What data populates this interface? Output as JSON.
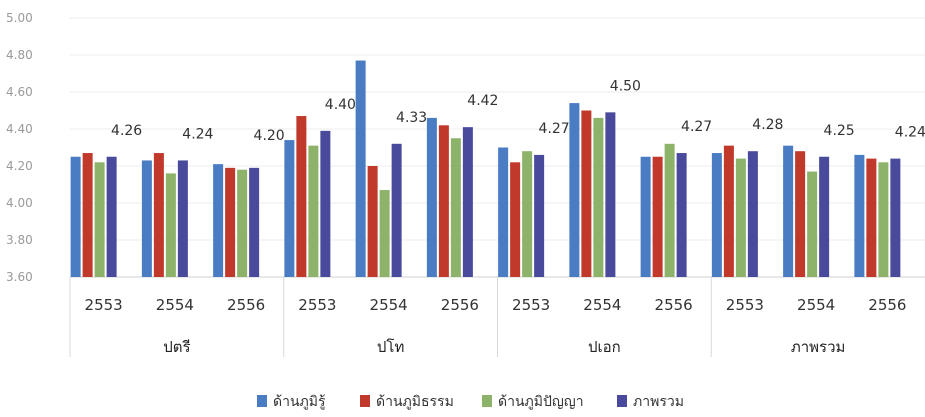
{
  "chart_data": {
    "type": "bar",
    "y_ticks": [
      "5.00",
      "4.80",
      "4.60",
      "4.40",
      "4.20",
      "4.00",
      "3.80",
      "3.60"
    ],
    "ylim": [
      3.6,
      5.0
    ],
    "groups": [
      {
        "label": "ปตรี",
        "categories": [
          "2553",
          "2554",
          "2556"
        ]
      },
      {
        "label": "ปโท",
        "categories": [
          "2553",
          "2554",
          "2556"
        ]
      },
      {
        "label": "ปเอก",
        "categories": [
          "2553",
          "2554",
          "2556"
        ]
      },
      {
        "label": "ภาพรวม",
        "categories": [
          "2553",
          "2554",
          "2556"
        ]
      }
    ],
    "series": [
      {
        "name": "ด้านภูมิรู้",
        "color": "#4a7cc4",
        "values": [
          4.25,
          4.23,
          4.21,
          4.34,
          4.77,
          4.46,
          4.3,
          4.54,
          4.25,
          4.27,
          4.31,
          4.26
        ]
      },
      {
        "name": "ด้านภูมิธรรม",
        "color": "#c0392b",
        "values": [
          4.27,
          4.27,
          4.19,
          4.47,
          4.2,
          4.42,
          4.22,
          4.5,
          4.25,
          4.31,
          4.28,
          4.24
        ]
      },
      {
        "name": "ด้านภูมิปัญญา",
        "color": "#8db36a",
        "values": [
          4.22,
          4.16,
          4.18,
          4.31,
          4.07,
          4.35,
          4.28,
          4.46,
          4.32,
          4.24,
          4.17,
          4.22
        ]
      },
      {
        "name": "ภาพรวม",
        "color": "#4a4a9c",
        "values": [
          4.25,
          4.23,
          4.19,
          4.39,
          4.32,
          4.41,
          4.26,
          4.49,
          4.27,
          4.28,
          4.25,
          4.24
        ]
      }
    ],
    "data_labels": [
      "4.26",
      "4.24",
      "4.20",
      "4.40",
      "4.33",
      "4.42",
      "4.27",
      "4.50",
      "4.27",
      "4.28",
      "4.25",
      "4.24"
    ],
    "legend_position": "bottom",
    "grid": true
  }
}
